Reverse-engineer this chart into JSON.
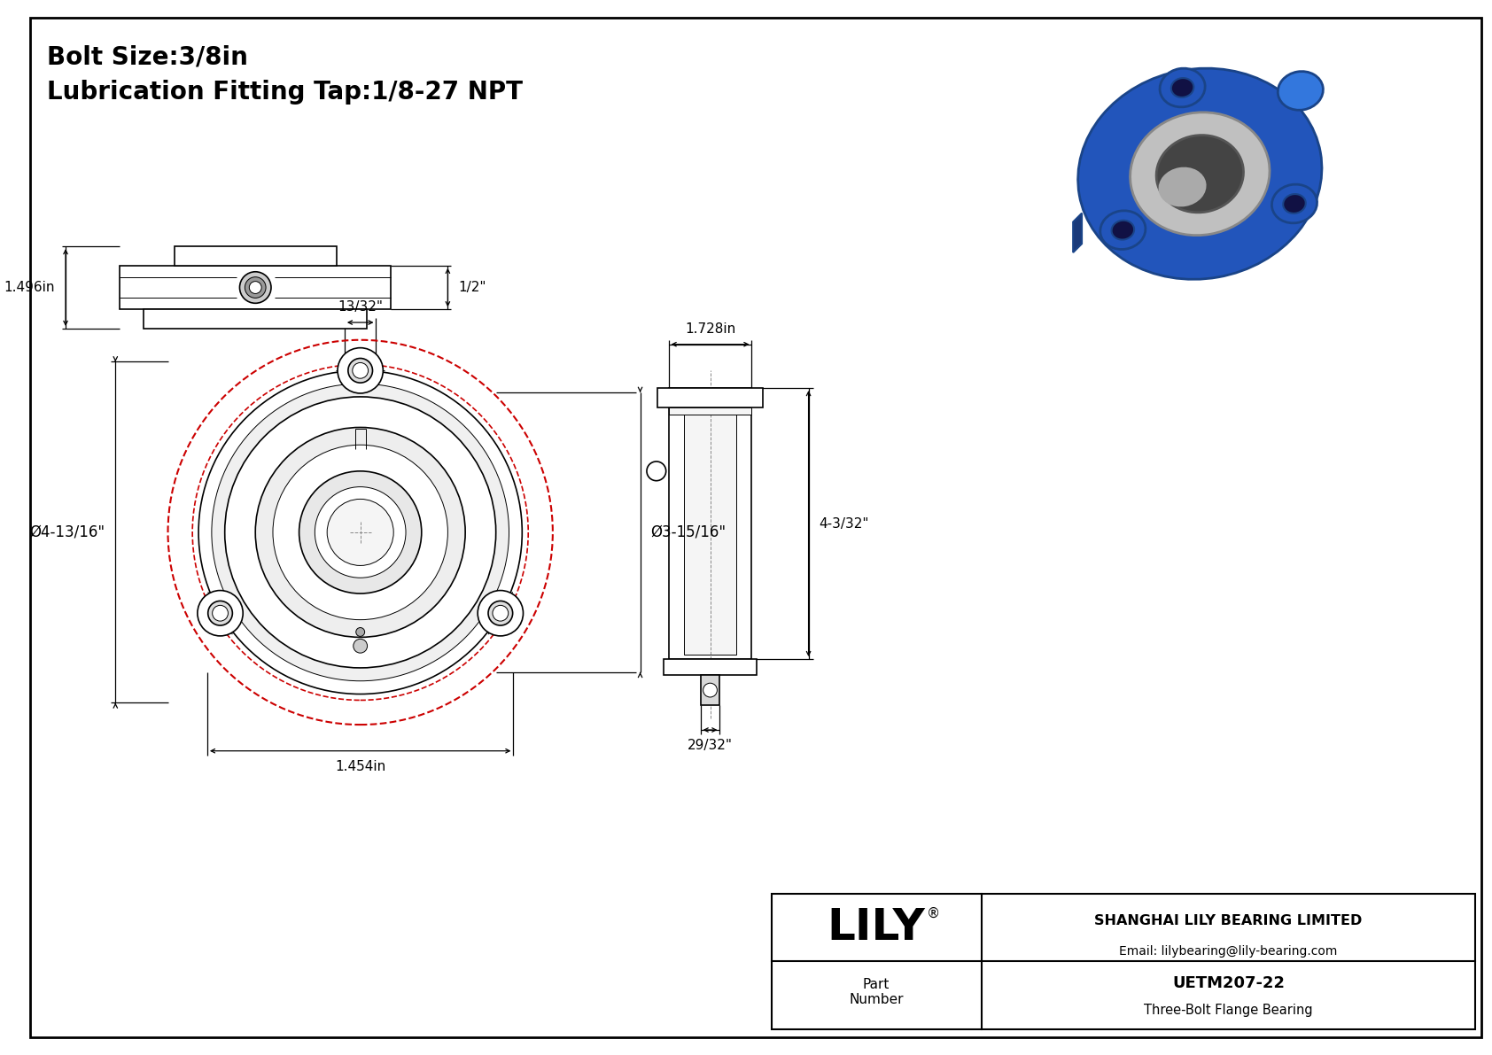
{
  "title_line1": "Bolt Size:3/8in",
  "title_line2": "Lubrication Fitting Tap:1/8-27 NPT",
  "bg_color": "#ffffff",
  "border_color": "#000000",
  "drawing_color": "#000000",
  "red_circle_color": "#e8000000",
  "annotations": {
    "top_dim": "13/32\"",
    "left_dim": "Ø4-13/16\"",
    "right_dim": "Ø3-15/16\"",
    "bottom_dim": "1.454in",
    "side_top_dim": "1.728in",
    "side_right_dim": "4-3/32\"",
    "side_bottom_dim": "29/32\"",
    "front_left_dim": "1.496in",
    "front_right_dim": "1/2\""
  },
  "title_block": {
    "company": "SHANGHAI LILY BEARING LIMITED",
    "email": "Email: lilybearing@lily-bearing.com",
    "part_label": "Part\nNumber",
    "part_number": "UETM207-22",
    "part_desc": "Three-Bolt Flange Bearing",
    "logo": "LILY"
  }
}
